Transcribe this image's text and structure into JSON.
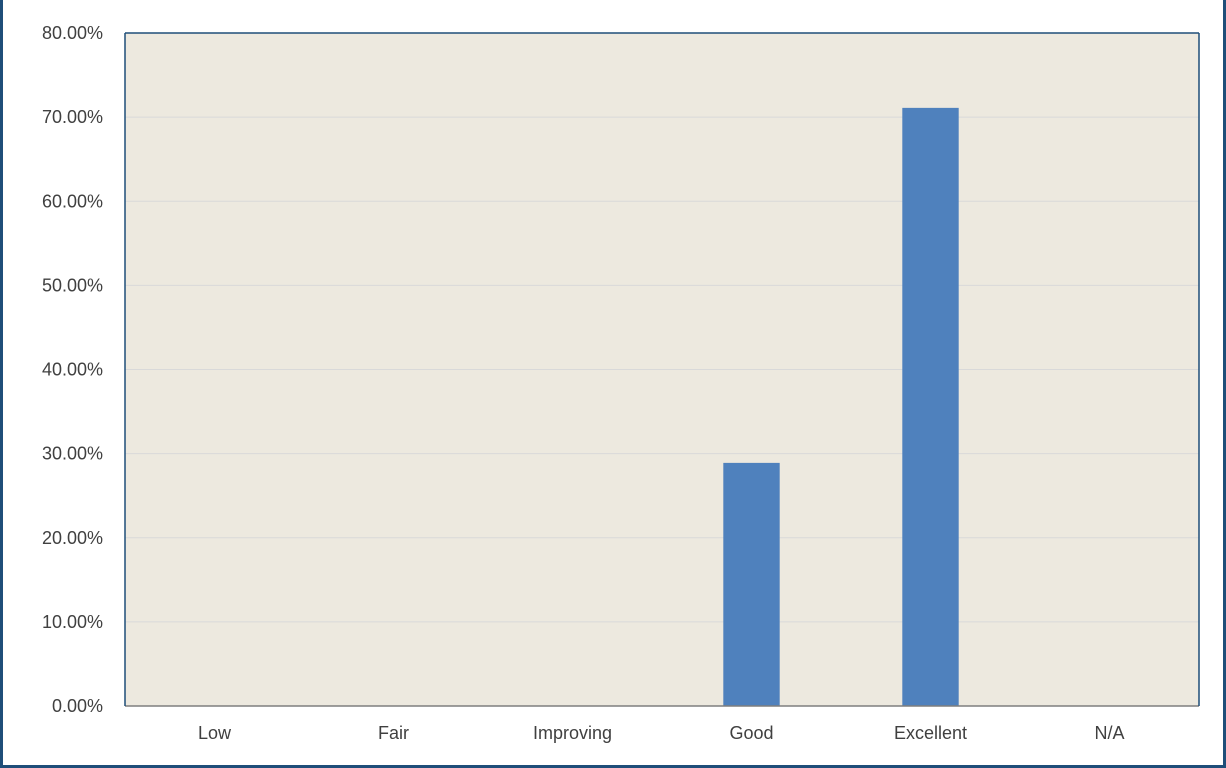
{
  "colors": {
    "plot_background": "#ede9df",
    "bar": "#4f81bd",
    "gridline": "#d9d9d9",
    "axis": "#7f7f7f",
    "frame": "#1f4e79"
  },
  "chart_data": {
    "type": "bar",
    "title": "",
    "xlabel": "",
    "ylabel": "",
    "categories": [
      "Low",
      "Fair",
      "Improving",
      "Good",
      "Excellent",
      "N/A"
    ],
    "values": [
      0,
      0,
      0,
      28.9,
      71.1,
      0
    ],
    "ylim": [
      0,
      80
    ],
    "yticks": [
      0,
      10,
      20,
      30,
      40,
      50,
      60,
      70,
      80
    ],
    "ytick_labels": [
      "0.00%",
      "10.00%",
      "20.00%",
      "30.00%",
      "40.00%",
      "50.00%",
      "60.00%",
      "70.00%",
      "80.00%"
    ],
    "grid": "horizontal",
    "legend": "none"
  }
}
